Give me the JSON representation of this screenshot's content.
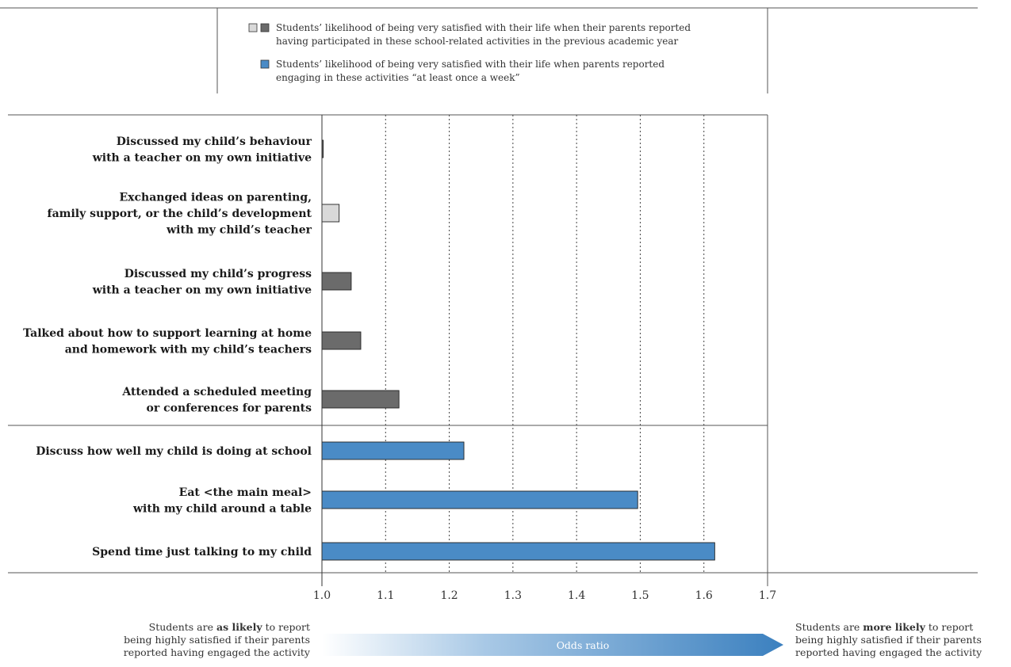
{
  "legend": {
    "participated_line1": "Students’ likelihood of being very satisfied with their life when their parents reported",
    "participated_line2": "having participated in these school-related activities in the previous academic year",
    "weekly_line1": "Students’ likelihood of being very satisfied with their life when parents reported",
    "weekly_line2": "engaging in these activities “at least once a week”"
  },
  "colors": {
    "light_grey": "#d9d9d9",
    "dark_grey": "#6b6b6b",
    "blue": "#4a8bc6"
  },
  "chart_data": {
    "type": "bar",
    "orientation": "horizontal",
    "xlim": [
      1.0,
      1.7
    ],
    "x_ticks": [
      "1.0",
      "1.1",
      "1.2",
      "1.3",
      "1.4",
      "1.5",
      "1.6",
      "1.7"
    ],
    "grid": "vertical dotted",
    "categories": [
      [
        "Discussed my child’s behaviour",
        "with a teacher on my own initiative"
      ],
      [
        "Exchanged ideas on parenting,",
        "family support, or the child’s development",
        "with my child’s teacher"
      ],
      [
        "Discussed my child’s progress",
        "with a teacher on my own initiative"
      ],
      [
        "Talked about how to support learning at home",
        "and homework with my child’s teachers"
      ],
      [
        "Attended a scheduled meeting",
        "or conferences for parents"
      ],
      [
        "Discuss how well my child is doing at school"
      ],
      [
        "Eat <the main meal>",
        "with my child around a table"
      ],
      [
        "Spend time just talking to my child"
      ]
    ],
    "values": [
      1.002,
      1.027,
      1.046,
      1.061,
      1.121,
      1.223,
      1.496,
      1.617
    ],
    "bar_colors": [
      "dark_grey",
      "light_grey",
      "dark_grey",
      "dark_grey",
      "dark_grey",
      "blue",
      "blue",
      "blue"
    ],
    "groups": [
      {
        "name": "participated in the previous academic year",
        "from": 0,
        "to": 4
      },
      {
        "name": "at least once a week",
        "from": 5,
        "to": 7
      }
    ]
  },
  "footer": {
    "left_pre": "Students are ",
    "left_bold": "as likely",
    "left_post": " to report",
    "left_line2": "being highly satisfied if their parents",
    "left_line3": "reported having engaged the activity",
    "right_pre": "Students are ",
    "right_bold": "more likely",
    "right_post": " to report",
    "right_line2": "being highly satisfied if their parents",
    "right_line3": "reported having engaged the activity",
    "arrow_label": "Odds ratio"
  }
}
